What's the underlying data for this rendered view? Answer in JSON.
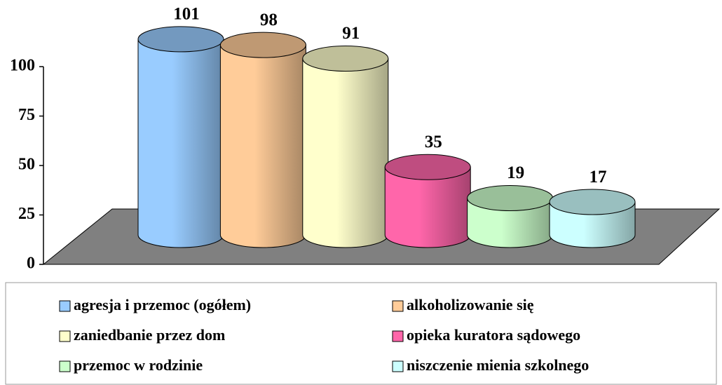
{
  "chart_data": {
    "type": "bar",
    "categories": [
      "agresja i przemoc (ogółem)",
      "alkoholizowanie się",
      "zaniedbanie przez dom",
      "opieka kuratora sądowego",
      "przemoc w rodzinie",
      "niszczenie mienia szkolnego"
    ],
    "values": [
      101,
      98,
      91,
      35,
      19,
      17
    ],
    "colors": [
      "#99ccff",
      "#ffcc99",
      "#ffffcc",
      "#ff66aa",
      "#ccffcc",
      "#ccffff"
    ],
    "ylim": [
      0,
      100
    ],
    "yticks": [
      0,
      25,
      50,
      75,
      100
    ],
    "legend": "bottom"
  }
}
